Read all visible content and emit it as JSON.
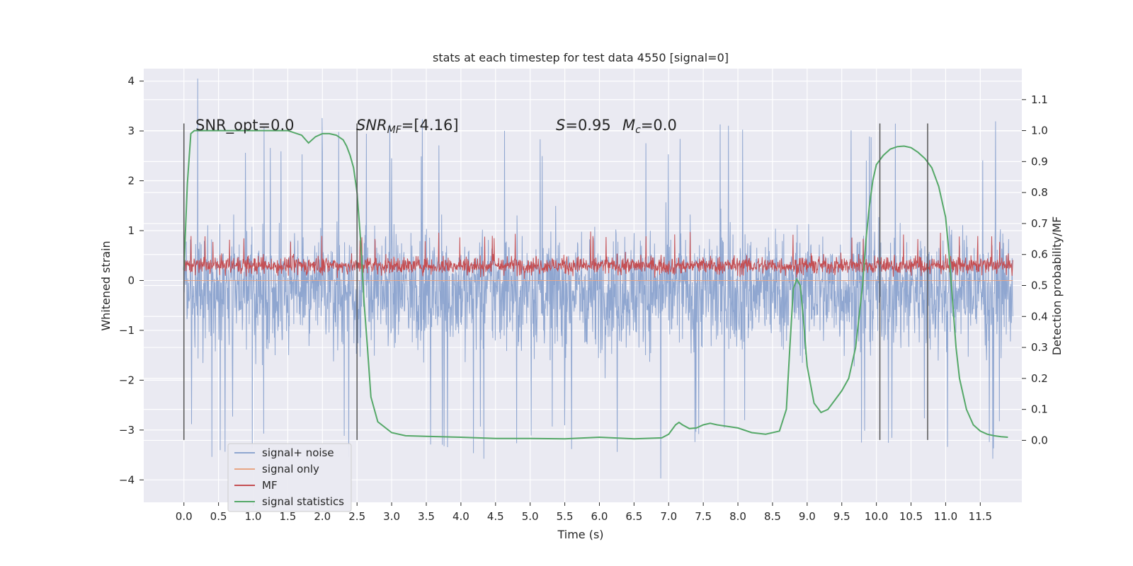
{
  "chart_data": {
    "type": "line",
    "title": "stats at each timestep for test data 4550 [signal=0]",
    "xlabel": "Time (s)",
    "ylabel": "Whitened strain",
    "ylabel_right": "Detection probability/MF",
    "xlim": [
      -0.58,
      12.1
    ],
    "ylim": [
      -4.45,
      4.25
    ],
    "ylim_right": [
      -0.2,
      1.2
    ],
    "x_ticks": [
      0.0,
      0.5,
      1.0,
      1.5,
      2.0,
      2.5,
      3.0,
      3.5,
      4.0,
      4.5,
      5.0,
      5.5,
      6.0,
      6.5,
      7.0,
      7.5,
      8.0,
      8.5,
      9.0,
      9.5,
      10.0,
      10.5,
      11.0,
      11.5
    ],
    "x_tick_labels": [
      "0.0",
      "0.5",
      "1.0",
      "1.5",
      "2.0",
      "2.5",
      "3.0",
      "3.5",
      "4.0",
      "4.5",
      "5.0",
      "5.5",
      "6.0",
      "6.5",
      "7.0",
      "7.5",
      "8.0",
      "8.5",
      "9.0",
      "9.5",
      "10.0",
      "10.5",
      "11.0",
      "11.5"
    ],
    "y_ticks": [
      -4,
      -3,
      -2,
      -1,
      0,
      1,
      2,
      3,
      4
    ],
    "y_tick_labels": [
      "−4",
      "−3",
      "−2",
      "−1",
      "0",
      "1",
      "2",
      "3",
      "4"
    ],
    "y_ticks_right": [
      0.0,
      0.1,
      0.2,
      0.3,
      0.4,
      0.5,
      0.6,
      0.7,
      0.8,
      0.9,
      1.0,
      1.1
    ],
    "y_tick_labels_right": [
      "0.0",
      "0.1",
      "0.2",
      "0.3",
      "0.4",
      "0.5",
      "0.6",
      "0.7",
      "0.8",
      "0.9",
      "1.0",
      "1.1"
    ],
    "grid": true,
    "legend_position": "lower-left",
    "annotations": {
      "snr_opt": "SNR_opt=0.0",
      "snr_mf_base": "SNR",
      "snr_mf_sub": "MF",
      "snr_mf_rest": "=[4.16]",
      "s_base": "S",
      "s_rest": "=0.95",
      "mc_base": "M",
      "mc_sub": "c",
      "mc_rest": "=0.0"
    },
    "vertical_markers_x": [
      0.0,
      2.5,
      10.05,
      10.74
    ],
    "vertical_markers_ylim": [
      -3.2,
      3.15
    ],
    "series": [
      {
        "name": "signal+ noise",
        "color": "#8fa6d0",
        "kind": "noise",
        "x_range": [
          0.0,
          11.97
        ],
        "band_upper_typical": 1.9,
        "band_lower_typical": -2.3,
        "peak_max": 4.05,
        "peak_min": -3.97
      },
      {
        "name": "signal only",
        "color": "#e8a584",
        "kind": "flat",
        "values": 0
      },
      {
        "name": "MF",
        "color": "#c44e52",
        "kind": "noise",
        "x_range": [
          0.0,
          11.97
        ],
        "band_lower": 0.03,
        "band_upper_typical": 0.6,
        "peak_max": 1.0
      },
      {
        "name": "signal statistics",
        "color": "#55a868",
        "kind": "curve",
        "x": [
          0.0,
          0.05,
          0.1,
          0.15,
          0.2,
          0.5,
          1.0,
          1.5,
          1.7,
          1.8,
          1.9,
          2.0,
          2.1,
          2.2,
          2.3,
          2.35,
          2.4,
          2.45,
          2.5,
          2.55,
          2.6,
          2.65,
          2.7,
          2.8,
          3.0,
          3.2,
          3.5,
          4.0,
          4.5,
          5.0,
          5.5,
          6.0,
          6.5,
          6.9,
          7.0,
          7.1,
          7.15,
          7.2,
          7.3,
          7.4,
          7.5,
          7.6,
          7.7,
          8.0,
          8.2,
          8.4,
          8.6,
          8.7,
          8.75,
          8.8,
          8.85,
          8.9,
          8.95,
          9.0,
          9.1,
          9.2,
          9.3,
          9.4,
          9.5,
          9.6,
          9.7,
          9.8,
          9.85,
          9.9,
          9.95,
          10.0,
          10.1,
          10.2,
          10.3,
          10.4,
          10.5,
          10.6,
          10.7,
          10.8,
          10.9,
          11.0,
          11.05,
          11.1,
          11.15,
          11.2,
          11.3,
          11.4,
          11.5,
          11.6,
          11.7,
          11.8,
          11.9
        ],
        "y": [
          0.55,
          0.83,
          0.99,
          1.0,
          1.0,
          1.0,
          1.0,
          1.0,
          0.985,
          0.96,
          0.98,
          0.99,
          0.99,
          0.985,
          0.97,
          0.95,
          0.92,
          0.88,
          0.8,
          0.65,
          0.45,
          0.3,
          0.14,
          0.06,
          0.025,
          0.015,
          0.013,
          0.01,
          0.006,
          0.006,
          0.005,
          0.01,
          0.005,
          0.008,
          0.02,
          0.05,
          0.058,
          0.05,
          0.038,
          0.04,
          0.05,
          0.055,
          0.05,
          0.04,
          0.025,
          0.02,
          0.03,
          0.1,
          0.3,
          0.49,
          0.52,
          0.5,
          0.38,
          0.24,
          0.12,
          0.09,
          0.1,
          0.13,
          0.16,
          0.2,
          0.3,
          0.5,
          0.65,
          0.76,
          0.84,
          0.89,
          0.92,
          0.94,
          0.948,
          0.95,
          0.945,
          0.93,
          0.91,
          0.88,
          0.82,
          0.72,
          0.6,
          0.45,
          0.3,
          0.2,
          0.1,
          0.05,
          0.03,
          0.02,
          0.015,
          0.012,
          0.01
        ]
      }
    ]
  }
}
